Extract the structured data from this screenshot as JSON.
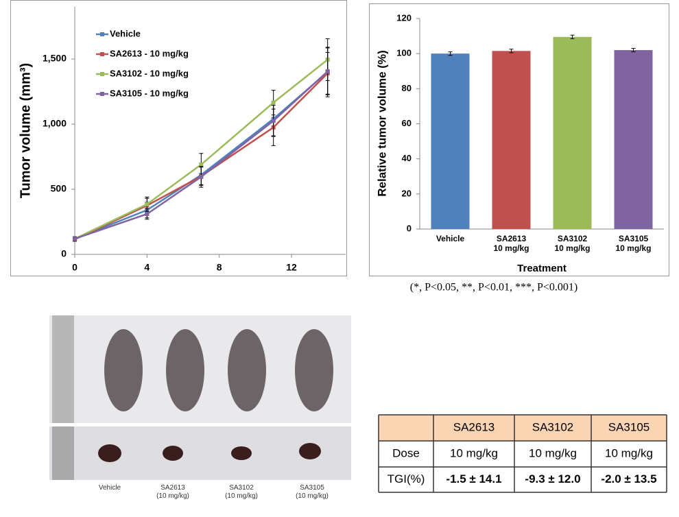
{
  "chart_data": [
    {
      "type": "line",
      "ylabel": "Tumor volume (mm³)",
      "x": [
        0,
        4,
        7,
        11,
        14
      ],
      "xlim": [
        0,
        15
      ],
      "xticks": [
        0,
        4,
        8,
        12
      ],
      "ylim": [
        0,
        1900
      ],
      "yticks": [
        0,
        500,
        {
          "value": 1000,
          "label": "1,000"
        },
        {
          "value": 1500,
          "label": "1,500"
        }
      ],
      "legend": "top-left",
      "series": [
        {
          "name": "Vehicle",
          "color": "#4f81bd",
          "values": [
            120,
            340,
            610,
            1040,
            1400
          ],
          "errors": [
            15,
            60,
            75,
            130,
            190
          ]
        },
        {
          "name": "SA2613 - 10 mg/kg",
          "color": "#c0504d",
          "values": [
            115,
            375,
            600,
            975,
            1390
          ],
          "errors": [
            15,
            55,
            70,
            140,
            160
          ]
        },
        {
          "name": "SA3102 - 10 mg/kg",
          "color": "#9bbb59",
          "values": [
            120,
            385,
            690,
            1165,
            1495
          ],
          "errors": [
            15,
            55,
            85,
            95,
            160
          ]
        },
        {
          "name": "SA3105 - 10 mg/kg",
          "color": "#8064a2",
          "values": [
            120,
            310,
            595,
            1025,
            1405
          ],
          "errors": [
            15,
            40,
            80,
            120,
            180
          ]
        }
      ]
    },
    {
      "type": "bar",
      "xlabel": "Treatment",
      "ylabel": "Relative tumor volume (%)",
      "categories": [
        "Vehicle",
        "SA2613\n10 mg/kg",
        "SA3102\n10 mg/kg",
        "SA3105\n10 mg/kg"
      ],
      "values": [
        100,
        101.5,
        109.5,
        102
      ],
      "errors": [
        1,
        1,
        1,
        1
      ],
      "colors": [
        "#4f81bd",
        "#c0504d",
        "#9bbb59",
        "#8064a2"
      ],
      "ylim": [
        0,
        120
      ],
      "yticks": [
        0,
        20,
        40,
        60,
        80,
        100,
        120
      ]
    }
  ],
  "note": "(*, P<0.05, **, P<0.01, ***, P<0.001)",
  "photo": {
    "labels": [
      "Vehicle",
      "SA2613\n(10 mg/kg)",
      "SA3102\n(10 mg/kg)",
      "SA3105\n(10 mg/kg)"
    ]
  },
  "table": {
    "columns": [
      "SA2613",
      "SA3102",
      "SA3105"
    ],
    "rows": [
      [
        "Dose",
        "10 mg/kg",
        "10 mg/kg",
        "10 mg/kg"
      ],
      [
        "TGI(%)",
        "-1.5 ± 14.1",
        "-9.3 ± 12.0",
        "-2.0 ± 13.5"
      ]
    ]
  }
}
